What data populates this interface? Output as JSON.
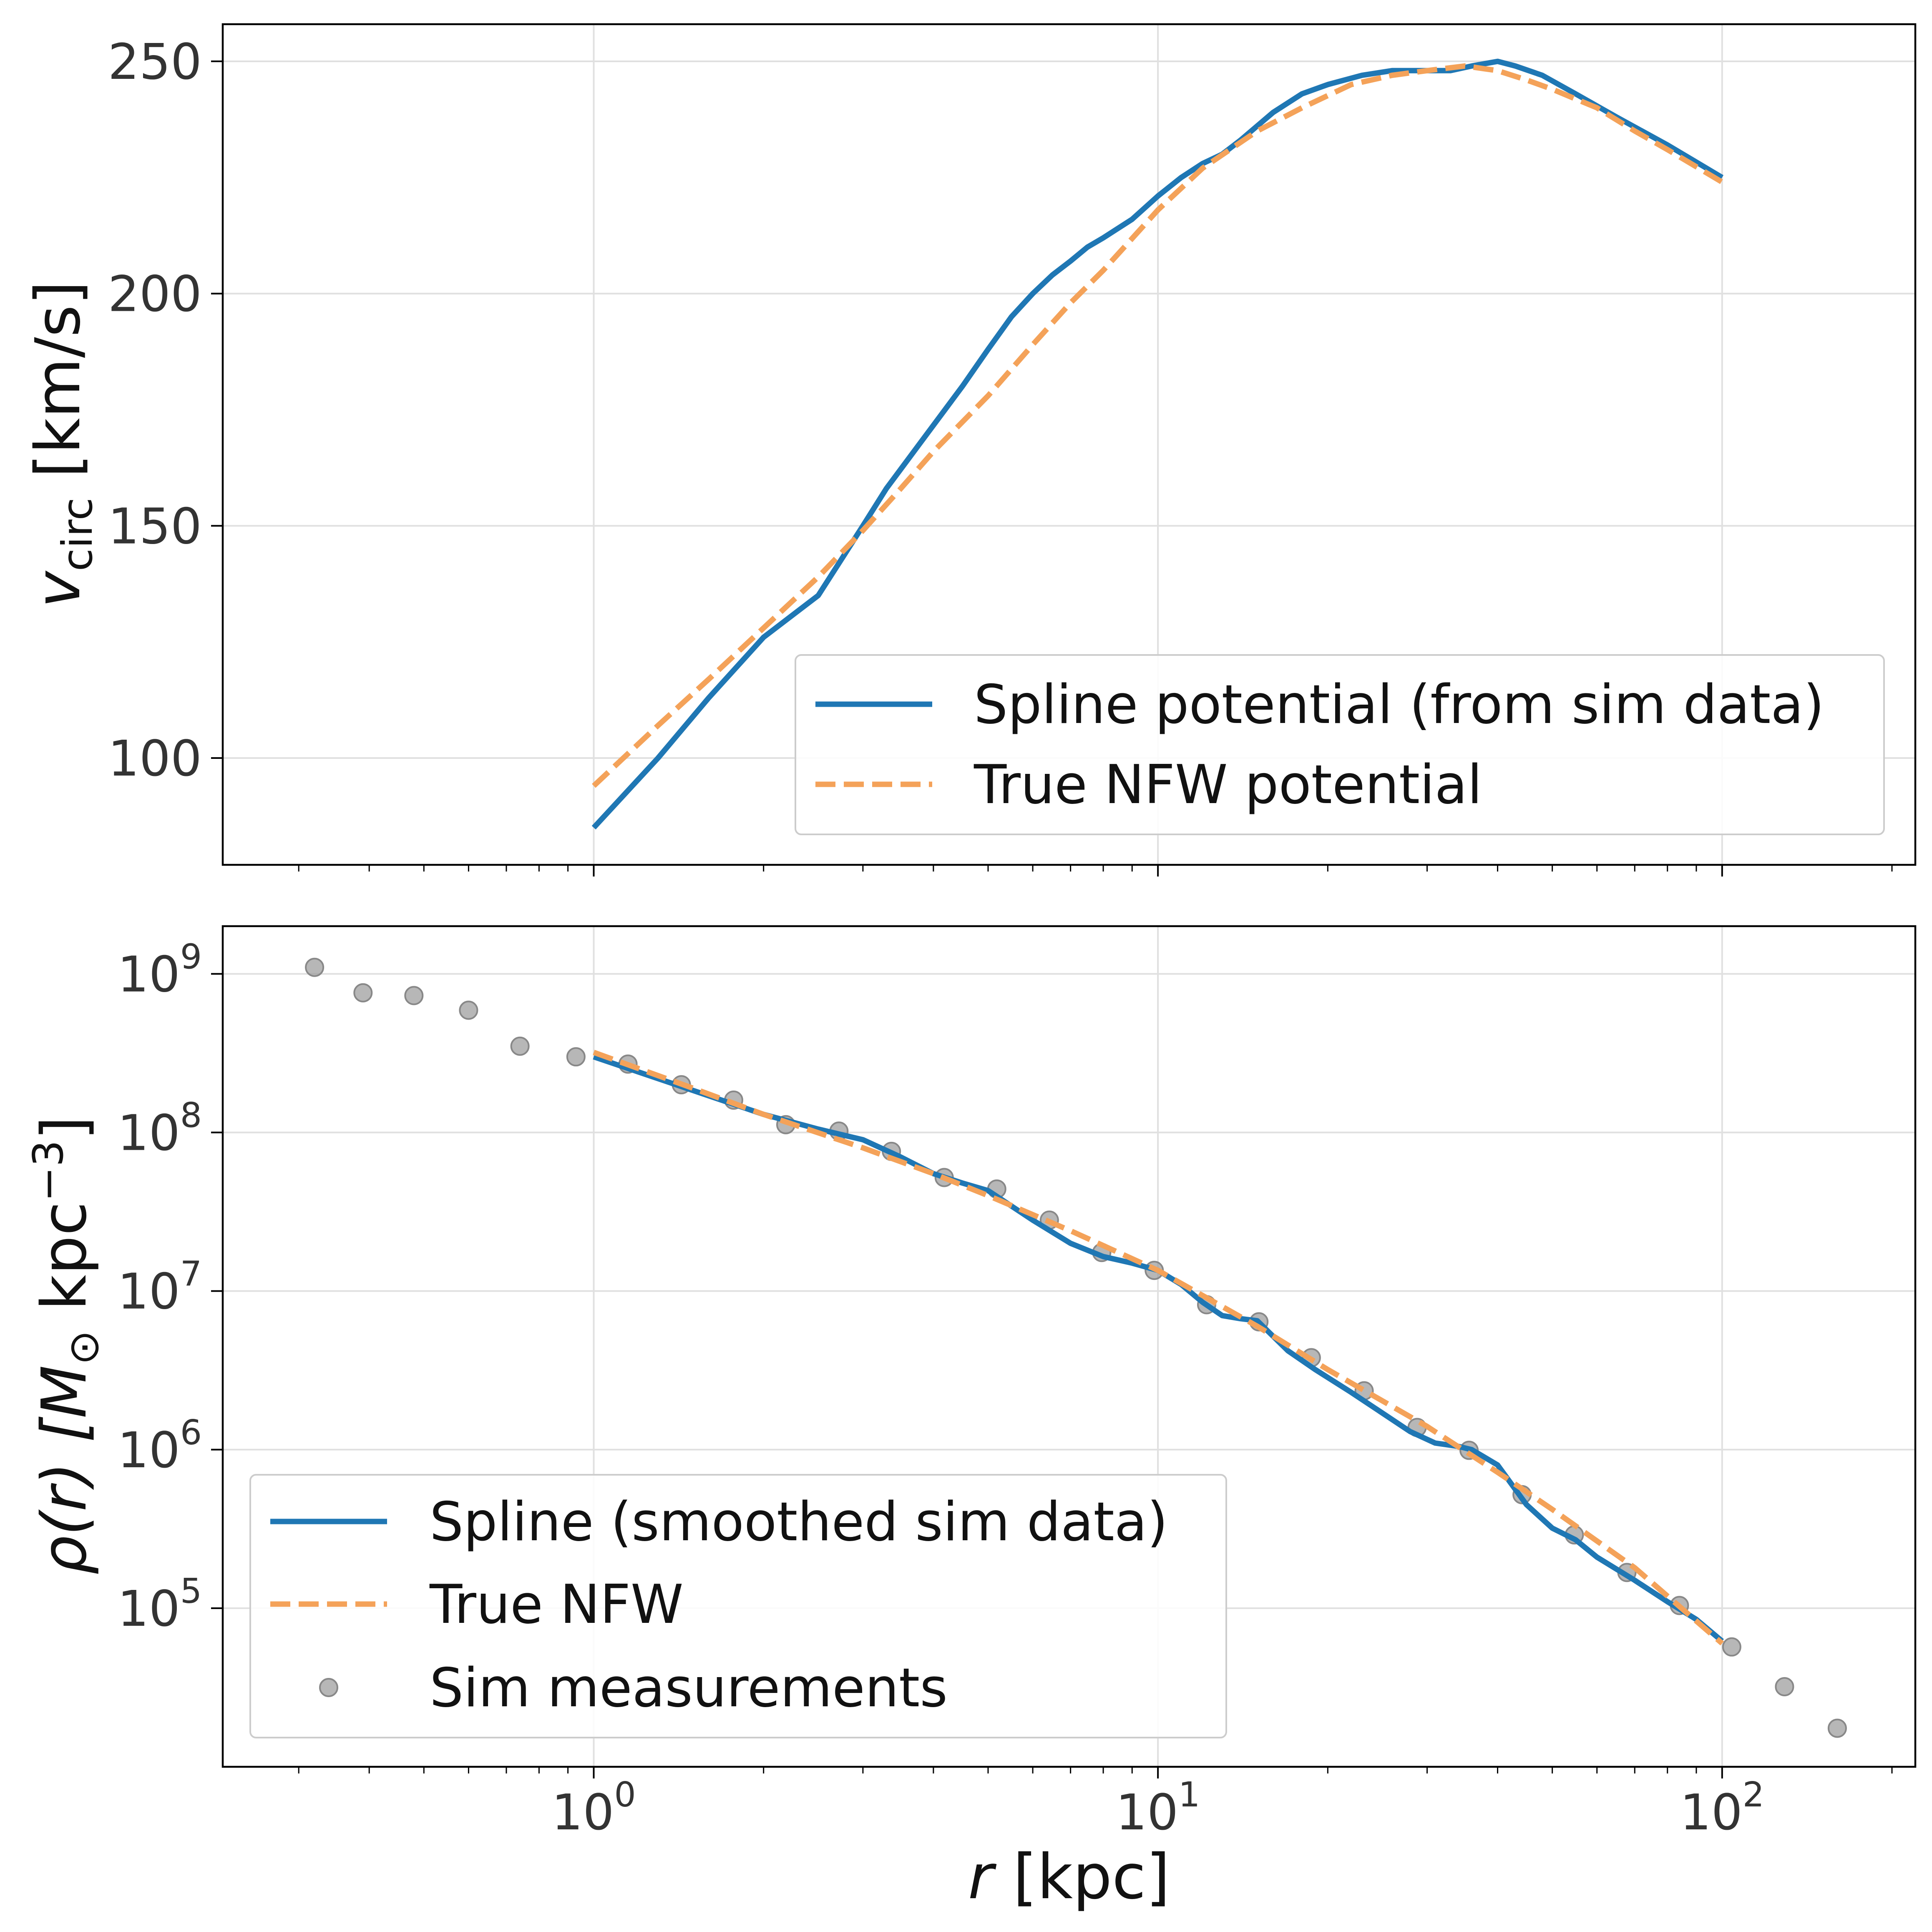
{
  "chart_data": [
    {
      "type": "line",
      "ylabel_main": "v",
      "ylabel_sub": "circ",
      "ylabel_unit": " [km/s]",
      "xscale": "log",
      "xlim": [
        0.22,
        220
      ],
      "ylim": [
        77,
        258
      ],
      "yticks": [
        100,
        150,
        200,
        250
      ],
      "grid": true,
      "legend_position": "lower-right",
      "series": [
        {
          "name": "Spline potential (from sim data)",
          "color": "#1f77b4",
          "style": "solid",
          "x": [
            1.0,
            1.3,
            1.6,
            2.0,
            2.5,
            3.0,
            3.3,
            3.8,
            4.5,
            5.0,
            5.5,
            6.0,
            6.5,
            7.0,
            7.5,
            8.0,
            9.0,
            10.0,
            11.0,
            12.0,
            13.0,
            14.0,
            16.0,
            18.0,
            20.0,
            23.0,
            26.0,
            30.0,
            33.0,
            36.0,
            40.0,
            43.0,
            48.0,
            55.0,
            65.0,
            80.0,
            100.0
          ],
          "y": [
            85,
            100,
            113,
            126,
            135,
            150,
            158,
            168,
            180,
            188,
            195,
            200,
            204,
            207,
            210,
            212,
            216,
            221,
            225,
            228,
            230,
            233,
            239,
            243,
            245,
            247,
            248,
            248,
            248,
            249,
            250,
            249,
            247,
            243,
            238,
            232,
            225
          ]
        },
        {
          "name": "True NFW potential",
          "color": "#f4a259",
          "style": "dashed",
          "x": [
            1.0,
            1.3,
            1.6,
            2.0,
            2.5,
            3.0,
            3.5,
            4.0,
            5.0,
            6.0,
            7.0,
            8.0,
            10.0,
            12.0,
            15.0,
            18.0,
            22.0,
            26.0,
            30.0,
            35.0,
            40.0,
            45.0,
            50.0,
            60.0,
            70.0,
            80.0,
            100.0
          ],
          "y": [
            94,
            107,
            117,
            128,
            139,
            149,
            158,
            166,
            178,
            189,
            198,
            205,
            218,
            227,
            235,
            240,
            245,
            247,
            248,
            249,
            248,
            246,
            244,
            240,
            235,
            231,
            224
          ]
        }
      ]
    },
    {
      "type": "line",
      "ylabel_text": "ρ(r) [M",
      "ylabel_sub": "⊙",
      "ylabel_unit": " kpc",
      "ylabel_sup": "−3",
      "ylabel_close": "]",
      "xlabel_main": "r",
      "xlabel_unit": " [kpc]",
      "xscale": "log",
      "yscale": "log",
      "xlim": [
        0.22,
        220
      ],
      "ylim": [
        10000,
        2000000000
      ],
      "xticks": [
        {
          "base": "10",
          "exp": "0",
          "value": 1
        },
        {
          "base": "10",
          "exp": "1",
          "value": 10
        },
        {
          "base": "10",
          "exp": "2",
          "value": 100
        }
      ],
      "yticks": [
        {
          "base": "10",
          "exp": "5",
          "value": 100000
        },
        {
          "base": "10",
          "exp": "6",
          "value": 1000000
        },
        {
          "base": "10",
          "exp": "7",
          "value": 10000000
        },
        {
          "base": "10",
          "exp": "8",
          "value": 100000000
        },
        {
          "base": "10",
          "exp": "9",
          "value": 1000000000
        }
      ],
      "grid": true,
      "legend_position": "lower-left",
      "series": [
        {
          "name": "Spline (smoothed sim data)",
          "color": "#1f77b4",
          "style": "solid",
          "x": [
            1.0,
            1.4,
            2.0,
            2.5,
            3.0,
            3.5,
            4.0,
            4.5,
            5.0,
            6.0,
            7.0,
            8.0,
            9.0,
            10.0,
            11.0,
            12.0,
            13.0,
            14.0,
            15.0,
            17.0,
            19.0,
            22.0,
            25.0,
            28.0,
            31.0,
            34.0,
            36.0,
            40.0,
            45.0,
            50.0,
            55.0,
            60.0,
            70.0,
            80.0,
            90.0,
            100.0
          ],
          "y": [
            300000000,
            200000000,
            130000000,
            105000000,
            90000000,
            70000000,
            55000000,
            48000000,
            43000000,
            28000000,
            20000000,
            16500000,
            15000000,
            13500000,
            11000000,
            8500000,
            7000000,
            6700000,
            6500000,
            4200000,
            3200000,
            2300000,
            1700000,
            1300000,
            1100000,
            1050000,
            1000000,
            800000,
            450000,
            320000,
            270000,
            210000,
            150000,
            110000,
            85000,
            62000
          ]
        },
        {
          "name": "True NFW",
          "color": "#f4a259",
          "style": "dashed",
          "x": [
            1.0,
            1.5,
            2.0,
            3.0,
            4.0,
            5.0,
            7.0,
            10.0,
            15.0,
            20.0,
            30.0,
            40.0,
            50.0,
            70.0,
            100.0
          ],
          "y": [
            320000000,
            190000000,
            130000000,
            80000000,
            55000000,
            40000000,
            24000000,
            13500000,
            6000000,
            3200000,
            1400000,
            720000,
            420000,
            180000,
            60000
          ]
        },
        {
          "name": "Sim measurements",
          "color": "#999999",
          "style": "markers",
          "x": [
            0.32,
            0.39,
            0.48,
            0.6,
            0.74,
            0.93,
            1.15,
            1.43,
            1.77,
            2.19,
            2.72,
            3.37,
            4.18,
            5.18,
            6.42,
            7.95,
            9.85,
            12.2,
            15.1,
            18.7,
            23.2,
            28.8,
            35.6,
            44.2,
            54.7,
            67.8,
            84.0,
            104.0,
            129.0,
            160.0
          ],
          "y": [
            1100000000,
            760000000,
            730000000,
            590000000,
            350000000,
            300000000,
            270000000,
            200000000,
            160000000,
            112000000,
            102000000,
            76000000,
            52000000,
            44000000,
            28000000,
            17500000,
            13500000,
            8200000,
            6400000,
            3800000,
            2350000,
            1380000,
            990000,
            520000,
            290000,
            168000,
            104000,
            57000,
            32000,
            17500
          ]
        }
      ]
    }
  ]
}
